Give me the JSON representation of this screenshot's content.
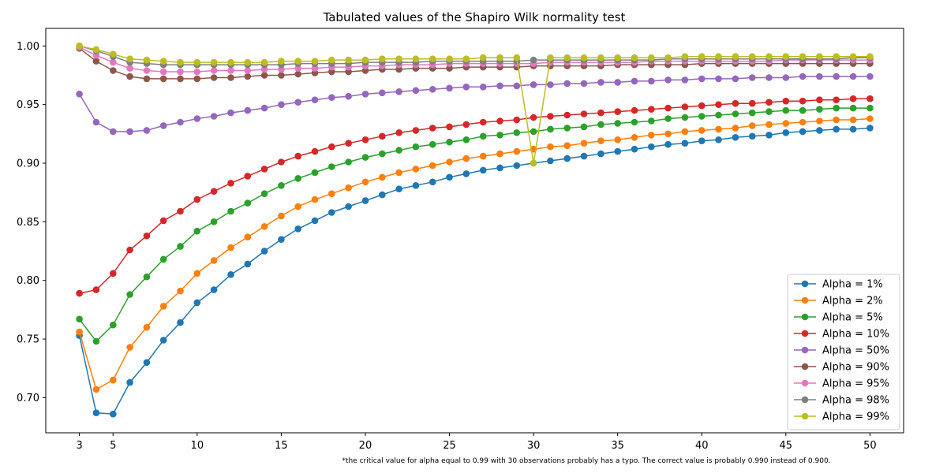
{
  "chart_data": {
    "type": "line",
    "title": "Tabulated values of the Shapiro Wilk normality test",
    "xlabel": "",
    "ylabel": "",
    "xlim": [
      1.0,
      52.0
    ],
    "ylim": [
      0.67,
      1.015
    ],
    "x_ticks": [
      3,
      5,
      10,
      15,
      20,
      25,
      30,
      35,
      40,
      45,
      50
    ],
    "y_ticks": [
      0.7,
      0.75,
      0.8,
      0.85,
      0.9,
      0.95,
      1.0
    ],
    "y_tick_labels": [
      "0.70",
      "0.75",
      "0.80",
      "0.85",
      "0.90",
      "0.95",
      "1.00"
    ],
    "grid": false,
    "legend_position": "lower-right",
    "footnote": "*the critical value for alpha equal to 0.99 with 30 observations probably has a typo. The correct value is probably 0.990 instead of 0.900.",
    "x": [
      3,
      4,
      5,
      6,
      7,
      8,
      9,
      10,
      11,
      12,
      13,
      14,
      15,
      16,
      17,
      18,
      19,
      20,
      21,
      22,
      23,
      24,
      25,
      26,
      27,
      28,
      29,
      30,
      31,
      32,
      33,
      34,
      35,
      36,
      37,
      38,
      39,
      40,
      41,
      42,
      43,
      44,
      45,
      46,
      47,
      48,
      49,
      50
    ],
    "series": [
      {
        "name": "Alpha = 1%",
        "color": "#1f77b4",
        "values": [
          0.753,
          0.687,
          0.686,
          0.713,
          0.73,
          0.749,
          0.764,
          0.781,
          0.792,
          0.805,
          0.814,
          0.825,
          0.835,
          0.844,
          0.851,
          0.858,
          0.863,
          0.868,
          0.873,
          0.878,
          0.881,
          0.884,
          0.888,
          0.891,
          0.894,
          0.896,
          0.898,
          0.9,
          0.902,
          0.904,
          0.906,
          0.908,
          0.91,
          0.912,
          0.914,
          0.916,
          0.917,
          0.919,
          0.92,
          0.922,
          0.923,
          0.924,
          0.926,
          0.927,
          0.928,
          0.929,
          0.929,
          0.93
        ]
      },
      {
        "name": "Alpha = 2%",
        "color": "#ff7f0e",
        "values": [
          0.756,
          0.707,
          0.715,
          0.743,
          0.76,
          0.778,
          0.791,
          0.806,
          0.817,
          0.828,
          0.837,
          0.846,
          0.855,
          0.863,
          0.869,
          0.874,
          0.879,
          0.884,
          0.888,
          0.892,
          0.895,
          0.898,
          0.901,
          0.904,
          0.906,
          0.908,
          0.91,
          0.912,
          0.914,
          0.915,
          0.917,
          0.919,
          0.92,
          0.922,
          0.924,
          0.925,
          0.927,
          0.928,
          0.929,
          0.93,
          0.932,
          0.933,
          0.934,
          0.935,
          0.936,
          0.937,
          0.937,
          0.938
        ]
      },
      {
        "name": "Alpha = 5%",
        "color": "#2ca02c",
        "values": [
          0.767,
          0.748,
          0.762,
          0.788,
          0.803,
          0.818,
          0.829,
          0.842,
          0.85,
          0.859,
          0.866,
          0.874,
          0.881,
          0.887,
          0.892,
          0.897,
          0.901,
          0.905,
          0.908,
          0.911,
          0.914,
          0.916,
          0.918,
          0.92,
          0.923,
          0.924,
          0.926,
          0.927,
          0.929,
          0.93,
          0.931,
          0.933,
          0.934,
          0.935,
          0.936,
          0.938,
          0.939,
          0.94,
          0.941,
          0.942,
          0.943,
          0.944,
          0.945,
          0.945,
          0.946,
          0.947,
          0.947,
          0.947
        ]
      },
      {
        "name": "Alpha = 10%",
        "color": "#d62728",
        "values": [
          0.789,
          0.792,
          0.806,
          0.826,
          0.838,
          0.851,
          0.859,
          0.869,
          0.876,
          0.883,
          0.889,
          0.895,
          0.901,
          0.906,
          0.91,
          0.914,
          0.917,
          0.92,
          0.923,
          0.926,
          0.928,
          0.93,
          0.931,
          0.933,
          0.935,
          0.936,
          0.937,
          0.939,
          0.94,
          0.941,
          0.942,
          0.943,
          0.944,
          0.945,
          0.946,
          0.947,
          0.948,
          0.949,
          0.95,
          0.951,
          0.951,
          0.952,
          0.953,
          0.953,
          0.954,
          0.954,
          0.955,
          0.955
        ]
      },
      {
        "name": "Alpha = 50%",
        "color": "#9467bd",
        "values": [
          0.959,
          0.935,
          0.927,
          0.927,
          0.928,
          0.932,
          0.935,
          0.938,
          0.94,
          0.943,
          0.945,
          0.947,
          0.95,
          0.952,
          0.954,
          0.956,
          0.957,
          0.959,
          0.96,
          0.961,
          0.962,
          0.963,
          0.964,
          0.965,
          0.965,
          0.966,
          0.966,
          0.967,
          0.967,
          0.968,
          0.968,
          0.969,
          0.969,
          0.97,
          0.97,
          0.971,
          0.971,
          0.972,
          0.972,
          0.972,
          0.973,
          0.973,
          0.973,
          0.974,
          0.974,
          0.974,
          0.974,
          0.974
        ]
      },
      {
        "name": "Alpha = 90%",
        "color": "#8c564b",
        "values": [
          0.998,
          0.987,
          0.979,
          0.974,
          0.972,
          0.972,
          0.972,
          0.972,
          0.973,
          0.973,
          0.974,
          0.975,
          0.975,
          0.976,
          0.977,
          0.978,
          0.978,
          0.979,
          0.98,
          0.98,
          0.981,
          0.981,
          0.981,
          0.982,
          0.982,
          0.982,
          0.982,
          0.983,
          0.983,
          0.983,
          0.983,
          0.983,
          0.984,
          0.984,
          0.984,
          0.984,
          0.984,
          0.985,
          0.985,
          0.985,
          0.985,
          0.985,
          0.985,
          0.985,
          0.985,
          0.985,
          0.985,
          0.985
        ]
      },
      {
        "name": "Alpha = 95%",
        "color": "#e377c2",
        "values": [
          0.999,
          0.992,
          0.986,
          0.981,
          0.979,
          0.978,
          0.978,
          0.978,
          0.979,
          0.979,
          0.979,
          0.98,
          0.98,
          0.981,
          0.981,
          0.982,
          0.982,
          0.983,
          0.983,
          0.984,
          0.984,
          0.984,
          0.985,
          0.985,
          0.985,
          0.985,
          0.985,
          0.985,
          0.986,
          0.986,
          0.986,
          0.986,
          0.986,
          0.986,
          0.987,
          0.987,
          0.987,
          0.987,
          0.987,
          0.987,
          0.987,
          0.987,
          0.988,
          0.988,
          0.988,
          0.988,
          0.988,
          0.988
        ]
      },
      {
        "name": "Alpha = 98%",
        "color": "#7f7f7f",
        "values": [
          1.0,
          0.996,
          0.991,
          0.986,
          0.985,
          0.984,
          0.984,
          0.984,
          0.984,
          0.984,
          0.984,
          0.984,
          0.984,
          0.985,
          0.985,
          0.985,
          0.985,
          0.986,
          0.986,
          0.986,
          0.986,
          0.987,
          0.987,
          0.987,
          0.987,
          0.987,
          0.987,
          0.988,
          0.988,
          0.988,
          0.988,
          0.988,
          0.988,
          0.988,
          0.988,
          0.989,
          0.989,
          0.989,
          0.989,
          0.989,
          0.989,
          0.989,
          0.989,
          0.989,
          0.989,
          0.989,
          0.99,
          0.99
        ]
      },
      {
        "name": "Alpha = 99%",
        "color": "#bcbd22",
        "values": [
          1.0,
          0.997,
          0.993,
          0.989,
          0.988,
          0.987,
          0.986,
          0.986,
          0.986,
          0.986,
          0.986,
          0.986,
          0.987,
          0.987,
          0.987,
          0.988,
          0.988,
          0.988,
          0.989,
          0.989,
          0.989,
          0.989,
          0.989,
          0.989,
          0.99,
          0.99,
          0.99,
          0.9,
          0.99,
          0.99,
          0.99,
          0.99,
          0.99,
          0.99,
          0.99,
          0.99,
          0.991,
          0.991,
          0.991,
          0.991,
          0.991,
          0.991,
          0.991,
          0.991,
          0.991,
          0.991,
          0.991,
          0.991
        ]
      }
    ]
  }
}
